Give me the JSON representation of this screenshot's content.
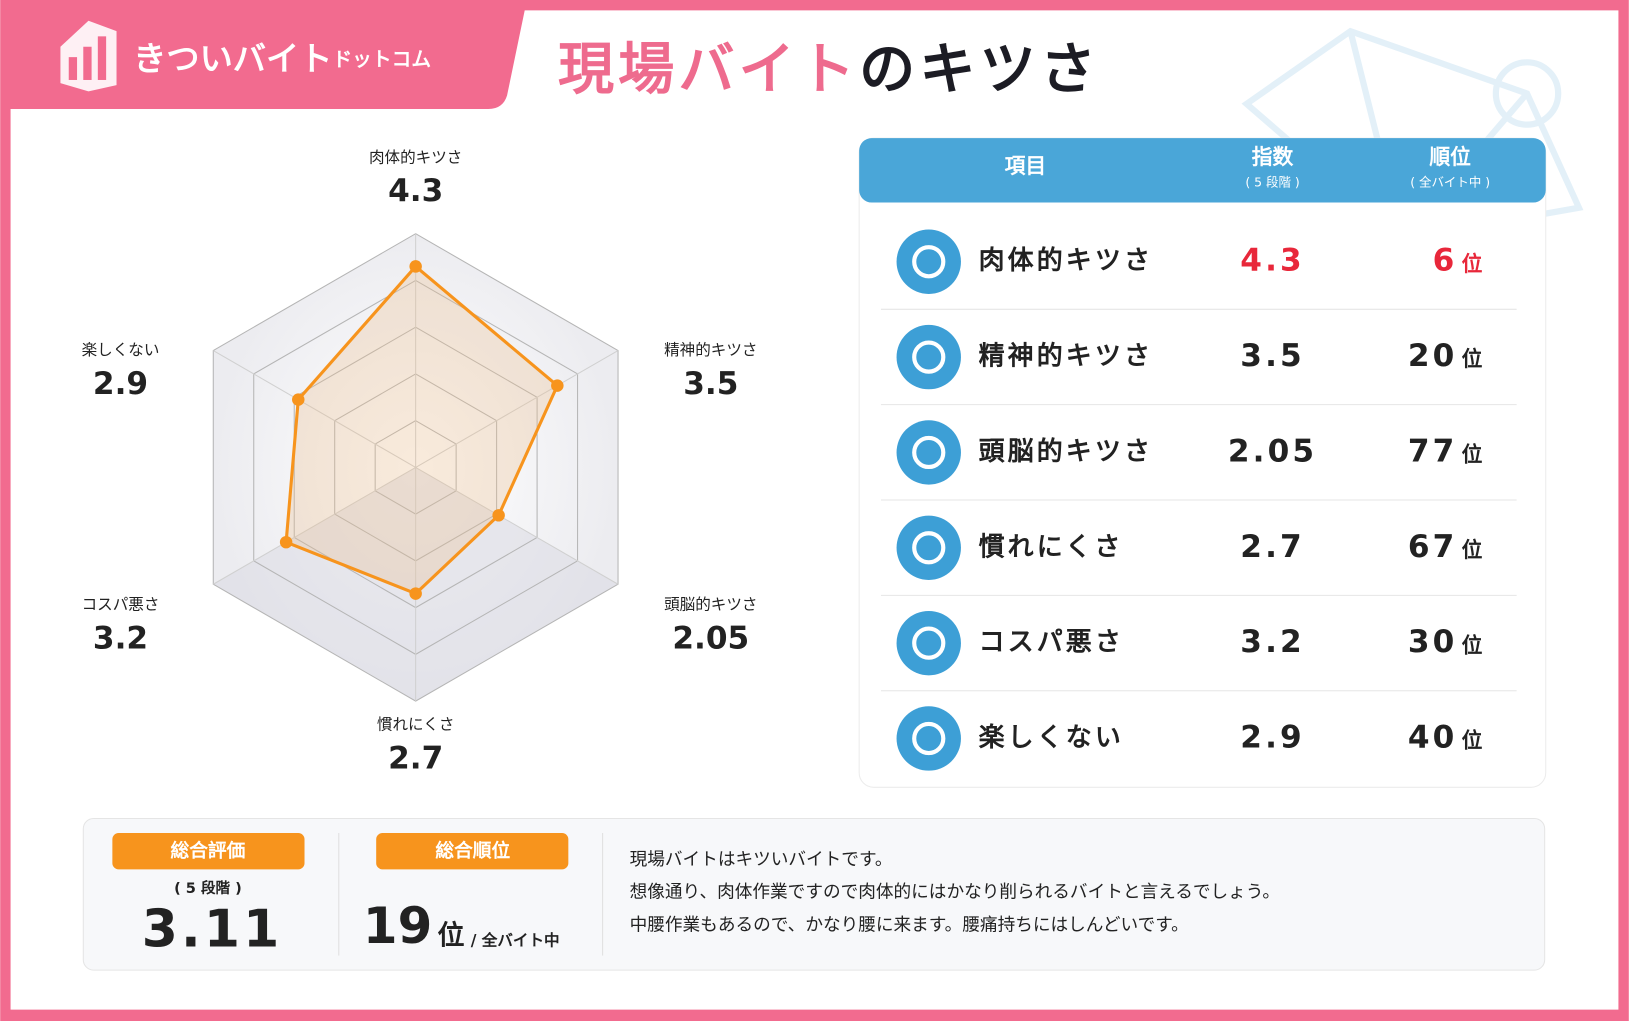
{
  "header": {
    "logo": "きついバイト",
    "logo_sub": "ドットコム",
    "title_highlight": "現場バイト",
    "title_rest": "のキツさ"
  },
  "chart_data": {
    "type": "radar",
    "categories": [
      "肉体的キツさ",
      "精神的キツさ",
      "頭脳的キツさ",
      "慣れにくさ",
      "コスパ悪さ",
      "楽しくない"
    ],
    "values": [
      4.3,
      3.5,
      2.05,
      2.7,
      3.2,
      2.9
    ],
    "rlim": [
      0,
      5
    ],
    "rticks": [
      1,
      2,
      3,
      4,
      5
    ],
    "color": "#f7941d",
    "grid": true
  },
  "table": {
    "columns": [
      "項目",
      "指数",
      "順位"
    ],
    "column_notes": [
      "( 5 段階 )",
      "( 全バイト中 )"
    ],
    "rank_unit": "位",
    "rows": [
      {
        "rank": 6,
        "color": "#e8273a"
      },
      {
        "rank": 20,
        "color": "#222222"
      },
      {
        "rank": 77,
        "color": "#222222"
      },
      {
        "rank": 67,
        "color": "#222222"
      },
      {
        "rank": 30,
        "color": "#222222"
      },
      {
        "rank": 40,
        "color": "#222222"
      }
    ]
  },
  "summary": {
    "score_label": "総合評価",
    "score_note": "( 5 段階 )",
    "score": 3.11,
    "rank_label": "総合順位",
    "rank": 19,
    "rank_unit": "位",
    "rank_note": "/ 全バイト中",
    "comments": [
      "現場バイトはキツいバイトです。",
      "想像通り、肉体作業ですので肉体的にはかなり削られるバイトと言えるでしょう。",
      "中腰作業もあるので、かなり腰に来ます。腰痛持ちにはしんどいです。"
    ]
  }
}
